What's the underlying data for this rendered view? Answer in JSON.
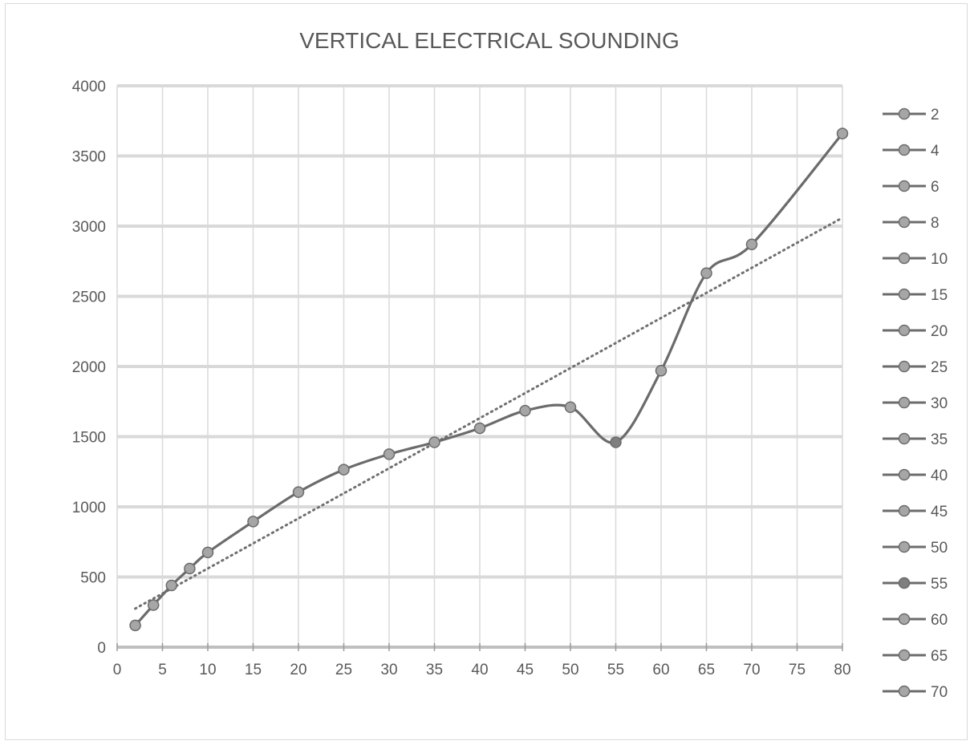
{
  "chart_data": {
    "type": "line",
    "title": "VERTICAL ELECTRICAL SOUNDING",
    "xlabel": "",
    "ylabel": "",
    "x_ticks": [
      "0",
      "5",
      "10",
      "15",
      "20",
      "25",
      "30",
      "35",
      "40",
      "45",
      "50",
      "55",
      "60",
      "65",
      "70",
      "75",
      "80"
    ],
    "y_ticks": [
      "0",
      "500",
      "1000",
      "1500",
      "2000",
      "2500",
      "3000",
      "3500",
      "4000"
    ],
    "xlim": [
      0,
      80
    ],
    "ylim": [
      0,
      4000
    ],
    "grid": true,
    "legend_position": "right",
    "legend_entries": [
      "2",
      "4",
      "6",
      "8",
      "10",
      "15",
      "20",
      "25",
      "30",
      "35",
      "40",
      "45",
      "50",
      "55",
      "60",
      "65",
      "70"
    ],
    "series": [
      {
        "x": [
          2,
          4,
          6,
          8,
          10,
          15,
          20,
          25,
          30,
          35,
          40,
          45,
          50,
          55,
          60,
          65,
          70,
          80
        ],
        "values": [
          155,
          300,
          440,
          560,
          675,
          895,
          1105,
          1265,
          1375,
          1460,
          1560,
          1685,
          1710,
          1460,
          1970,
          2665,
          2870,
          3660
        ],
        "smooth": true
      }
    ],
    "trendline": {
      "type": "linear",
      "style": "dotted",
      "x": [
        2,
        80
      ],
      "values": [
        275,
        3060
      ]
    },
    "colors": {
      "line": "#6b6b6b",
      "marker_fill": "#a6a6a6",
      "marker_fill_dark": "#7f7f7f",
      "marker_stroke": "#6b6b6b",
      "grid": "#d9d9d9",
      "text": "#595959",
      "trendline": "#6f6f6f"
    }
  }
}
